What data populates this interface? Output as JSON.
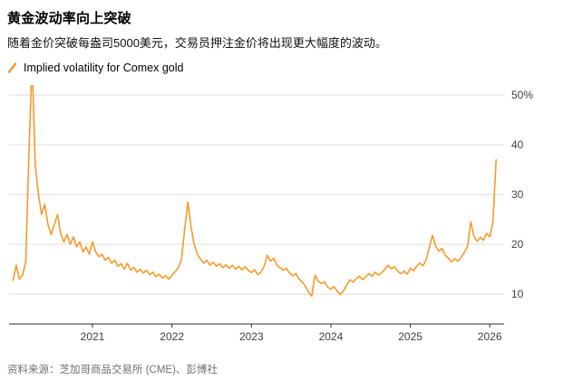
{
  "header": {
    "title": "黄金波动率向上突破",
    "subtitle": "随着金价突破每盎司5000美元，交易员押注金价将出现更大幅度的波动。"
  },
  "legend": {
    "label": "Implied volatility for Comex gold",
    "swatch_color": "#F79A28"
  },
  "footer": {
    "source": "资料来源：芝加哥商品交易所 (CME)、彭博社"
  },
  "chart_data": {
    "type": "line",
    "title": "黄金波动率向上突破",
    "series_name": "Implied volatility for Comex gold",
    "line_color": "#F79A28",
    "grid": true,
    "legend_position": "top-left",
    "x_start": 2020.0,
    "x_step": 0.04,
    "xlim": [
      2019.95,
      2026.18
    ],
    "ylim": [
      4,
      52
    ],
    "yticks": [
      10,
      20,
      30,
      40,
      50
    ],
    "ytick_labels": [
      "10",
      "20",
      "30",
      "40",
      "50%"
    ],
    "xticks": [
      2021,
      2022,
      2023,
      2024,
      2025,
      2026
    ],
    "xtick_labels": [
      "2021",
      "2022",
      "2023",
      "2024",
      "2025",
      "2026"
    ],
    "values": [
      12.8,
      15.8,
      13.0,
      13.8,
      16.5,
      38.0,
      57.0,
      36.0,
      30.0,
      26.0,
      28.0,
      24.0,
      22.0,
      24.0,
      26.0,
      22.0,
      20.5,
      22.0,
      20.0,
      21.5,
      19.5,
      20.5,
      18.5,
      19.5,
      18.0,
      20.5,
      18.5,
      17.5,
      18.0,
      16.8,
      17.4,
      16.2,
      16.8,
      15.6,
      16.1,
      15.0,
      16.2,
      14.8,
      15.4,
      14.4,
      15.0,
      14.2,
      14.8,
      13.9,
      14.4,
      13.5,
      14.0,
      13.2,
      13.7,
      13.0,
      13.8,
      14.5,
      15.3,
      17.0,
      23.0,
      28.5,
      23.5,
      20.0,
      18.0,
      17.0,
      16.2,
      16.8,
      15.8,
      16.4,
      15.6,
      16.1,
      15.3,
      15.9,
      15.2,
      15.8,
      15.0,
      15.6,
      14.9,
      15.5,
      14.8,
      14.3,
      14.9,
      13.9,
      14.4,
      15.6,
      17.8,
      16.6,
      17.2,
      15.9,
      15.3,
      14.8,
      15.2,
      14.2,
      13.7,
      14.1,
      13.0,
      12.4,
      11.6,
      10.4,
      9.6,
      13.8,
      12.6,
      12.1,
      12.5,
      11.4,
      11.0,
      11.5,
      10.6,
      9.9,
      10.7,
      11.8,
      12.9,
      12.4,
      13.1,
      13.6,
      12.9,
      13.5,
      14.1,
      13.6,
      14.4,
      13.8,
      14.3,
      15.0,
      15.8,
      15.1,
      15.5,
      14.6,
      14.1,
      14.6,
      14.0,
      15.2,
      14.7,
      15.6,
      16.2,
      15.7,
      16.9,
      19.5,
      21.8,
      19.6,
      18.6,
      19.2,
      17.8,
      17.2,
      16.5,
      17.1,
      16.6,
      17.4,
      18.4,
      19.6,
      24.5,
      21.6,
      20.6,
      21.4,
      20.8,
      22.2,
      21.5,
      24.5,
      37.0
    ]
  }
}
